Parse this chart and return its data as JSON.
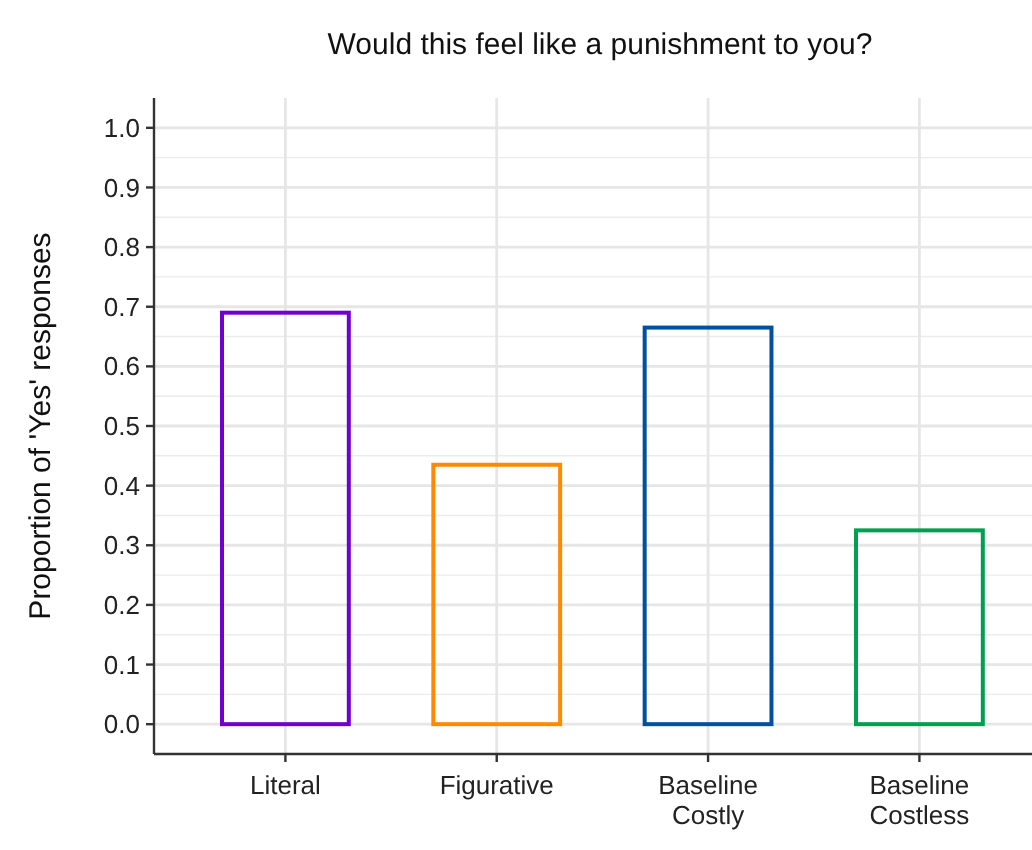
{
  "chart_data": {
    "type": "bar",
    "title": "Would this feel like a punishment to you?",
    "ylabel": "Proportion of 'Yes' responses",
    "categories": [
      "Literal",
      "Figurative",
      "Baseline Costly",
      "Baseline Costless"
    ],
    "values": [
      0.69,
      0.435,
      0.665,
      0.325
    ],
    "colors": [
      "#7000d0",
      "#ff8a00",
      "#0050a0",
      "#00a050"
    ],
    "ylim": [
      -0.05,
      1.05
    ],
    "yticks": [
      {
        "value": 0,
        "label": "0.0"
      },
      0.1,
      0.2,
      0.3,
      0.4,
      0.5,
      0.6,
      0.7,
      0.8,
      0.9,
      {
        "value": 1,
        "label": "1.0"
      }
    ],
    "grid": true
  }
}
